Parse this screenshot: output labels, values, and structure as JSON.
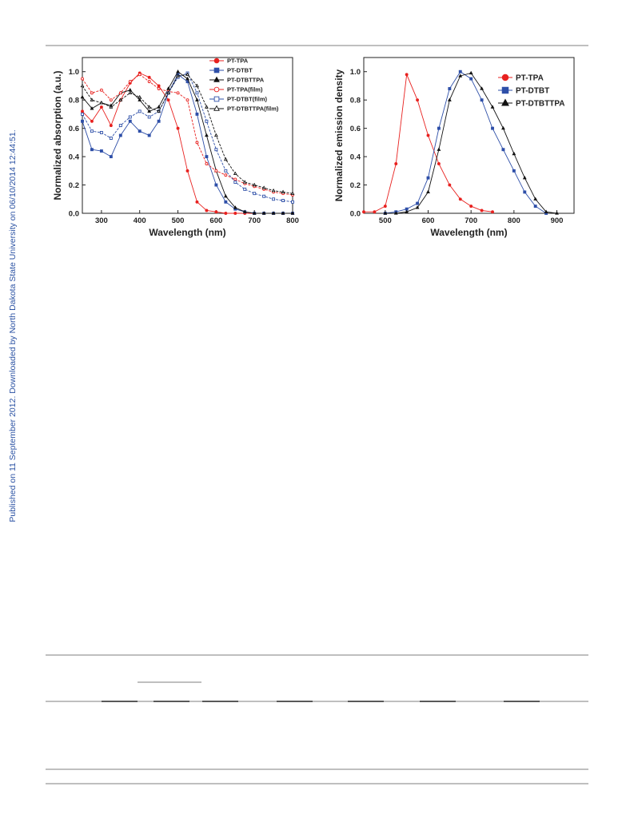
{
  "side_note": "Published on 11 September 2012. Downloaded by North Dakota State University on 06/10/2014 12:44:51.",
  "chart_data": [
    {
      "type": "line",
      "xlabel": "Wavelength (nm)",
      "ylabel": "Normalized absorption (a.u.)",
      "x": [
        250,
        275,
        300,
        325,
        350,
        375,
        400,
        425,
        450,
        475,
        500,
        525,
        550,
        575,
        600,
        625,
        650,
        675,
        700,
        725,
        750,
        775,
        800
      ],
      "xlim": [
        250,
        800
      ],
      "xticks": [
        300,
        400,
        500,
        600,
        700,
        800
      ],
      "ylim": [
        0,
        1.1
      ],
      "yticks": [
        {
          "value": 0,
          "label": "0.0"
        },
        0.2,
        0.4,
        0.6,
        0.8,
        {
          "value": 1,
          "label": "1.0"
        }
      ],
      "legend": "top-right",
      "series": [
        {
          "name": "PT-TPA",
          "color": "#e8211f",
          "marker": "circle",
          "filled": true,
          "dashed": false,
          "values": [
            0.72,
            0.65,
            0.75,
            0.62,
            0.8,
            0.92,
            0.99,
            0.96,
            0.9,
            0.8,
            0.6,
            0.3,
            0.08,
            0.02,
            0.01,
            0,
            0,
            0,
            0,
            0,
            0,
            0,
            0
          ]
        },
        {
          "name": "PT-DTBT",
          "color": "#2e4fa8",
          "marker": "square",
          "filled": true,
          "dashed": false,
          "values": [
            0.65,
            0.45,
            0.44,
            0.4,
            0.55,
            0.65,
            0.58,
            0.55,
            0.65,
            0.85,
            0.98,
            0.93,
            0.7,
            0.4,
            0.2,
            0.08,
            0.03,
            0.01,
            0,
            0,
            0,
            0,
            0
          ]
        },
        {
          "name": "PT-DTBTTPA",
          "color": "#111111",
          "marker": "triangle",
          "filled": true,
          "dashed": false,
          "values": [
            0.82,
            0.74,
            0.78,
            0.76,
            0.85,
            0.87,
            0.8,
            0.72,
            0.75,
            0.88,
            1,
            0.95,
            0.8,
            0.55,
            0.3,
            0.12,
            0.04,
            0.01,
            0,
            0,
            0,
            0,
            0
          ]
        },
        {
          "name": "PT-TPA(film)",
          "color": "#e8211f",
          "marker": "circle",
          "filled": false,
          "dashed": true,
          "values": [
            0.95,
            0.85,
            0.87,
            0.8,
            0.85,
            0.93,
            0.98,
            0.93,
            0.88,
            0.86,
            0.85,
            0.8,
            0.5,
            0.35,
            0.3,
            0.27,
            0.24,
            0.21,
            0.19,
            0.17,
            0.15,
            0.14,
            0.13
          ]
        },
        {
          "name": "PT-DTBT(film)",
          "color": "#2e4fa8",
          "marker": "square",
          "filled": false,
          "dashed": true,
          "values": [
            0.7,
            0.58,
            0.57,
            0.53,
            0.62,
            0.68,
            0.72,
            0.68,
            0.72,
            0.85,
            0.96,
            0.99,
            0.85,
            0.65,
            0.45,
            0.3,
            0.22,
            0.17,
            0.14,
            0.12,
            0.1,
            0.09,
            0.08
          ]
        },
        {
          "name": "PT-DTBTTPA(film)",
          "color": "#111111",
          "marker": "triangle",
          "filled": false,
          "dashed": true,
          "values": [
            0.9,
            0.8,
            0.78,
            0.75,
            0.8,
            0.85,
            0.82,
            0.75,
            0.72,
            0.85,
            0.97,
            0.98,
            0.9,
            0.75,
            0.55,
            0.38,
            0.28,
            0.22,
            0.2,
            0.18,
            0.16,
            0.15,
            0.14
          ]
        }
      ]
    },
    {
      "type": "line",
      "xlabel": "Wavelength (nm)",
      "ylabel": "Normalized emission density",
      "x": [
        450,
        475,
        500,
        525,
        550,
        575,
        600,
        625,
        650,
        675,
        700,
        725,
        750,
        775,
        800,
        825,
        850,
        875,
        900
      ],
      "xlim": [
        450,
        940
      ],
      "xticks": [
        500,
        600,
        700,
        800,
        900
      ],
      "ylim": [
        0,
        1.1
      ],
      "yticks": [
        {
          "value": 0,
          "label": "0.0"
        },
        0.2,
        0.4,
        0.6,
        0.8,
        {
          "value": 1,
          "label": "1.0"
        }
      ],
      "legend": "top-right",
      "series": [
        {
          "name": "PT-TPA",
          "color": "#e8211f",
          "marker": "circle",
          "filled": true,
          "dashed": false,
          "values": [
            0.01,
            0.01,
            0.05,
            0.35,
            0.98,
            0.8,
            0.55,
            0.35,
            0.2,
            0.1,
            0.05,
            0.02,
            0.01,
            null,
            null,
            null,
            null,
            null,
            null
          ]
        },
        {
          "name": "PT-DTBT",
          "color": "#2e4fa8",
          "marker": "square",
          "filled": true,
          "dashed": false,
          "values": [
            null,
            null,
            0,
            0.01,
            0.03,
            0.07,
            0.25,
            0.6,
            0.88,
            1,
            0.95,
            0.8,
            0.6,
            0.45,
            0.3,
            0.15,
            0.05,
            0,
            null
          ]
        },
        {
          "name": "PT-DTBTTPA",
          "color": "#111111",
          "marker": "triangle",
          "filled": true,
          "dashed": false,
          "values": [
            null,
            null,
            0,
            0,
            0.01,
            0.04,
            0.15,
            0.45,
            0.8,
            0.97,
            0.99,
            0.88,
            0.75,
            0.6,
            0.42,
            0.25,
            0.1,
            0.01,
            0
          ]
        }
      ]
    }
  ]
}
